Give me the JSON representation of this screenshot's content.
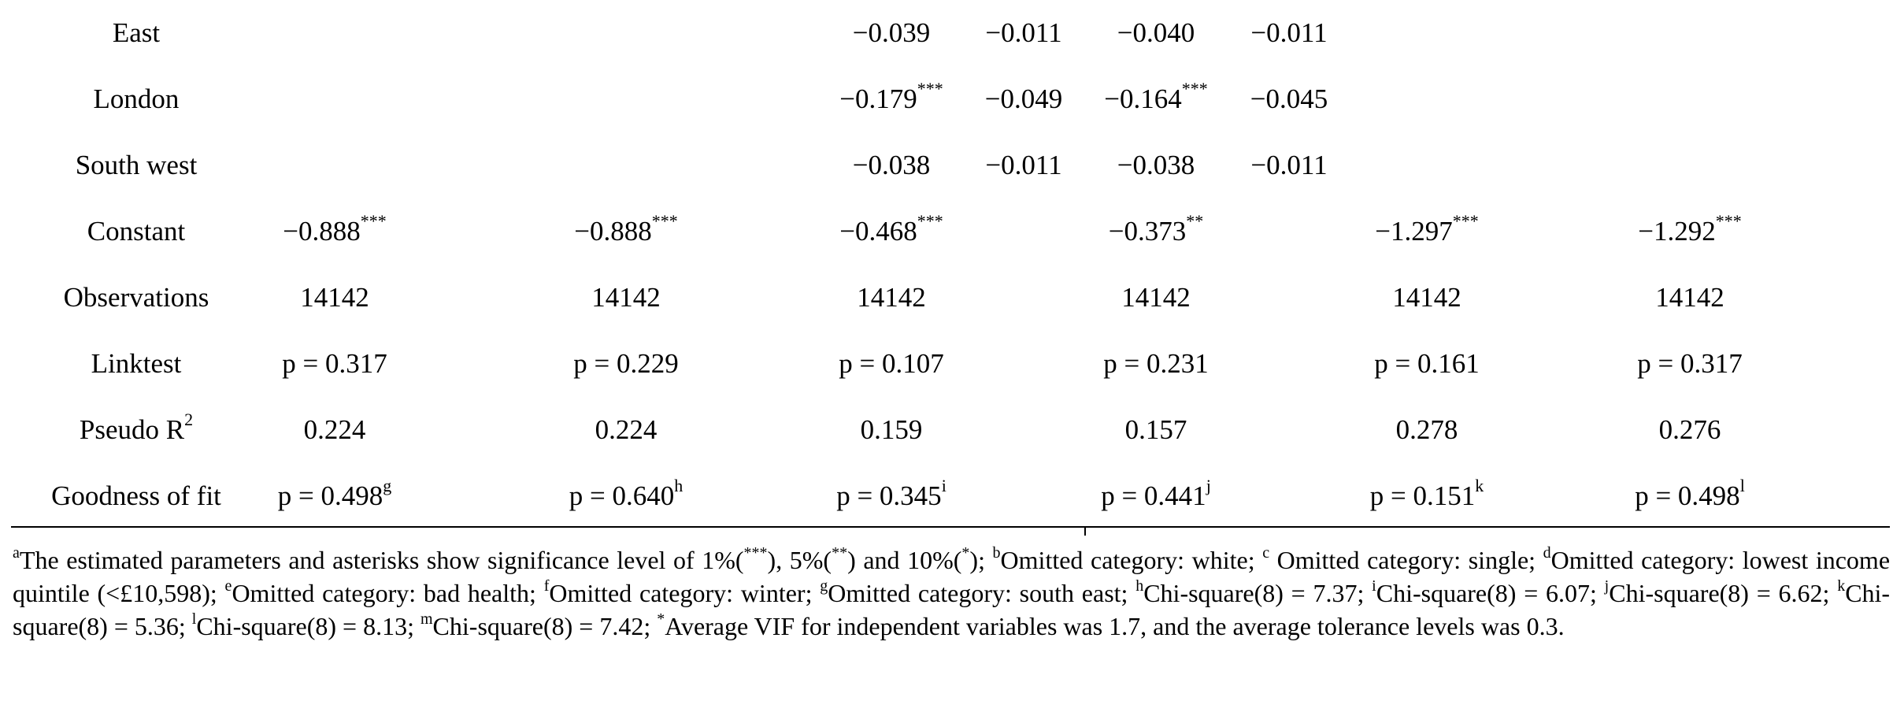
{
  "table": {
    "rows": [
      {
        "label": "East",
        "cells": [
          {
            "v": "",
            "s": ""
          },
          {
            "v": "",
            "s": ""
          },
          {
            "v": "−0.039",
            "s": ""
          },
          {
            "v": "−0.011",
            "s": ""
          },
          {
            "v": "−0.040",
            "s": ""
          },
          {
            "v": "−0.011",
            "s": ""
          },
          {
            "v": "",
            "s": ""
          },
          {
            "v": "",
            "s": ""
          }
        ]
      },
      {
        "label": "London",
        "cells": [
          {
            "v": "",
            "s": ""
          },
          {
            "v": "",
            "s": ""
          },
          {
            "v": "−0.179",
            "s": "***"
          },
          {
            "v": "−0.049",
            "s": ""
          },
          {
            "v": "−0.164",
            "s": "***"
          },
          {
            "v": "−0.045",
            "s": ""
          },
          {
            "v": "",
            "s": ""
          },
          {
            "v": "",
            "s": ""
          }
        ]
      },
      {
        "label": "South west",
        "cells": [
          {
            "v": "",
            "s": ""
          },
          {
            "v": "",
            "s": ""
          },
          {
            "v": "−0.038",
            "s": ""
          },
          {
            "v": "−0.011",
            "s": ""
          },
          {
            "v": "−0.038",
            "s": ""
          },
          {
            "v": "−0.011",
            "s": ""
          },
          {
            "v": "",
            "s": ""
          },
          {
            "v": "",
            "s": ""
          }
        ]
      },
      {
        "label": "Constant",
        "cells": [
          {
            "v": "−0.888",
            "s": "***"
          },
          {
            "v": "−0.888",
            "s": "***"
          },
          {
            "v": "−0.468",
            "s": "***"
          },
          {
            "v": "",
            "s": ""
          },
          {
            "v": "−0.373",
            "s": "**"
          },
          {
            "v": "",
            "s": ""
          },
          {
            "v": "−1.297",
            "s": "***"
          },
          {
            "v": "−1.292",
            "s": "***"
          }
        ]
      },
      {
        "label": "Observations",
        "cells": [
          {
            "v": "14142",
            "s": ""
          },
          {
            "v": "14142",
            "s": ""
          },
          {
            "v": "14142",
            "s": ""
          },
          {
            "v": "",
            "s": ""
          },
          {
            "v": "14142",
            "s": ""
          },
          {
            "v": "",
            "s": ""
          },
          {
            "v": "14142",
            "s": ""
          },
          {
            "v": "14142",
            "s": ""
          }
        ]
      },
      {
        "label": "Linktest",
        "cells": [
          {
            "v": "p = 0.317",
            "s": ""
          },
          {
            "v": "p = 0.229",
            "s": ""
          },
          {
            "v": "p = 0.107",
            "s": ""
          },
          {
            "v": "",
            "s": ""
          },
          {
            "v": "p = 0.231",
            "s": ""
          },
          {
            "v": "",
            "s": ""
          },
          {
            "v": "p = 0.161",
            "s": ""
          },
          {
            "v": "p = 0.317",
            "s": ""
          }
        ]
      },
      {
        "label": "Pseudo R",
        "label_sup": "2",
        "cells": [
          {
            "v": "0.224",
            "s": ""
          },
          {
            "v": "0.224",
            "s": ""
          },
          {
            "v": "0.159",
            "s": ""
          },
          {
            "v": "",
            "s": ""
          },
          {
            "v": "0.157",
            "s": ""
          },
          {
            "v": "",
            "s": ""
          },
          {
            "v": "0.278",
            "s": ""
          },
          {
            "v": "0.276",
            "s": ""
          }
        ]
      },
      {
        "label": "Goodness of fit",
        "cells": [
          {
            "v": "p = 0.498",
            "s": "g"
          },
          {
            "v": "p = 0.640",
            "s": "h"
          },
          {
            "v": "p = 0.345",
            "s": "i"
          },
          {
            "v": "",
            "s": ""
          },
          {
            "v": "p = 0.441",
            "s": "j"
          },
          {
            "v": "",
            "s": ""
          },
          {
            "v": "p = 0.151",
            "s": "k"
          },
          {
            "v": "p = 0.498",
            "s": "l"
          }
        ]
      }
    ]
  },
  "footnote": [
    {
      "sup": "a",
      "text": "The estimated parameters and asterisks show significance level of 1%("
    },
    {
      "sup": "***",
      "text": "), 5%("
    },
    {
      "sup": "**",
      "text": ") and 10%("
    },
    {
      "sup": "*",
      "text": "); "
    },
    {
      "sup": "b",
      "text": "Omitted category: white; "
    },
    {
      "sup": "c",
      "text": " Omitted category: single; "
    },
    {
      "sup": "d",
      "text": "Omitted category: lowest income quintile (<£10,598); "
    },
    {
      "sup": "e",
      "text": "Omitted category: bad health; "
    },
    {
      "sup": "f",
      "text": "Omitted category: winter; "
    },
    {
      "sup": "g",
      "text": "Omitted category: south east; "
    },
    {
      "sup": "h",
      "text": "Chi-square(8) = 7.37; "
    },
    {
      "sup": "i",
      "text": "Chi-square(8) = 6.07; "
    },
    {
      "sup": "j",
      "text": "Chi-square(8) = 6.62; "
    },
    {
      "sup": "k",
      "text": "Chi-square(8) = 5.36; "
    },
    {
      "sup": "l",
      "text": "Chi-square(8) = 8.13; "
    },
    {
      "sup": "m",
      "text": "Chi-square(8) = 7.42; "
    },
    {
      "sup": "*",
      "text": "Average VIF for independent variables was 1.7, and the average tolerance levels was 0.3."
    }
  ]
}
